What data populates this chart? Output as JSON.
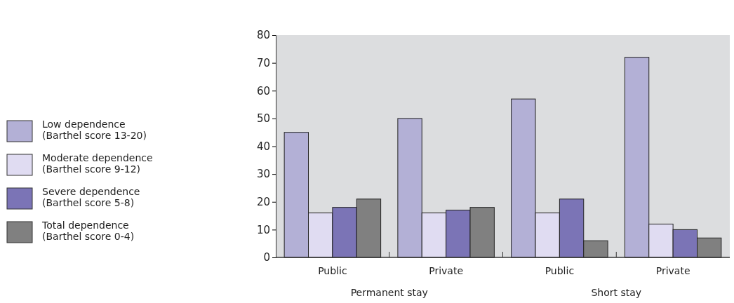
{
  "chart_data": {
    "type": "bar",
    "categories": [
      "Public",
      "Private",
      "Public",
      "Private"
    ],
    "series": [
      {
        "name": "Low dependence\n(Barthel score 13-20)",
        "color": "#b3b0d6",
        "values": [
          45,
          50,
          57,
          72
        ]
      },
      {
        "name": "Moderate dependence\n(Barthel score 9-12)",
        "color": "#e0dcf2",
        "values": [
          16,
          16,
          16,
          12
        ]
      },
      {
        "name": "Severe dependence\n(Barthel score 5-8)",
        "color": "#7b74b6",
        "values": [
          18,
          17,
          21,
          10
        ]
      },
      {
        "name": "Total dependence\n(Barthel score 0-4)",
        "color": "#808080",
        "values": [
          21,
          18,
          6,
          7
        ]
      }
    ],
    "annotations": [
      "Permanent stay",
      "Short stay"
    ],
    "ylim": [
      0,
      80
    ],
    "yticks": [
      0,
      10,
      20,
      30,
      40,
      50,
      60,
      70,
      80
    ],
    "grid": false,
    "legend": "left"
  }
}
